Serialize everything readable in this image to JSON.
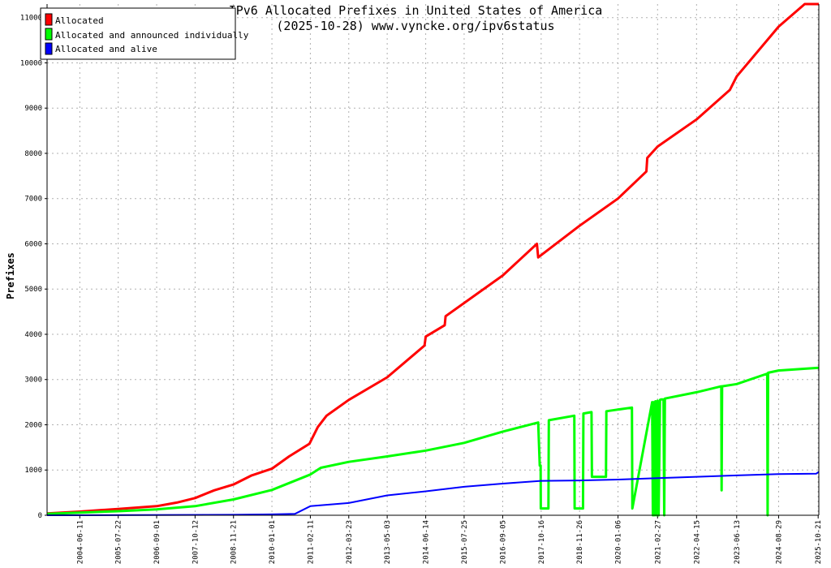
{
  "chart_data": {
    "type": "line",
    "title": "IPv6 Allocated Prefixes in United States of America",
    "subtitle": "(2025-10-28) www.vyncke.org/ipv6status",
    "xlabel": "",
    "ylabel": "Prefixes",
    "ylim": [
      0,
      11300
    ],
    "yticks": [
      0,
      1000,
      2000,
      3000,
      4000,
      5000,
      6000,
      7000,
      8000,
      9000,
      10000,
      11000
    ],
    "xlim": [
      "2003-07-01",
      "2025-10-28"
    ],
    "xticks": [
      "2004-06-11",
      "2005-07-22",
      "2006-09-01",
      "2007-10-12",
      "2008-11-21",
      "2010-01-01",
      "2011-02-11",
      "2012-03-23",
      "2013-05-03",
      "2014-06-14",
      "2015-07-25",
      "2016-09-05",
      "2017-10-16",
      "2018-11-26",
      "2020-01-06",
      "2021-02-27",
      "2022-04-15",
      "2023-06-13",
      "2024-08-29",
      "2025-10-21"
    ],
    "grid": true,
    "legend_position": "top-left",
    "series": [
      {
        "name": "Allocated",
        "color": "#ff0000",
        "x": [
          "2003-07-01",
          "2004-06-11",
          "2005-07-22",
          "2006-09-01",
          "2007-04-01",
          "2007-10-12",
          "2008-05-01",
          "2008-11-21",
          "2009-06-01",
          "2010-01-01",
          "2010-07-01",
          "2011-02-01",
          "2011-05-01",
          "2011-08-01",
          "2012-03-23",
          "2013-05-03",
          "2014-06-01",
          "2014-06-14",
          "2015-01-01",
          "2015-01-10",
          "2016-09-05",
          "2017-09-01",
          "2017-09-15",
          "2018-11-26",
          "2020-01-06",
          "2020-11-01",
          "2020-11-10",
          "2021-02-27",
          "2022-04-15",
          "2023-04-01",
          "2023-06-13",
          "2024-08-29",
          "2025-06-01",
          "2025-10-28"
        ],
        "values": [
          40,
          80,
          140,
          200,
          280,
          380,
          550,
          680,
          880,
          1030,
          1300,
          1580,
          1950,
          2200,
          2550,
          3050,
          3750,
          3950,
          4200,
          4400,
          5300,
          6000,
          5700,
          6400,
          7000,
          7600,
          7900,
          8150,
          8750,
          9400,
          9700,
          10800,
          11300,
          11300
        ]
      },
      {
        "name": "Allocated and announced individually",
        "color": "#00ff00",
        "x": [
          "2003-07-01",
          "2004-06-11",
          "2005-07-22",
          "2006-09-01",
          "2007-10-12",
          "2008-11-21",
          "2010-01-01",
          "2011-02-11",
          "2011-06-01",
          "2012-03-23",
          "2013-05-03",
          "2014-06-14",
          "2015-07-25",
          "2016-09-05",
          "2017-09-15",
          "2017-10-01",
          "2017-10-10",
          "2017-10-12",
          "2018-01-01",
          "2018-01-05",
          "2018-10-01",
          "2018-10-05",
          "2019-01-01",
          "2019-01-05",
          "2019-04-01",
          "2019-04-05",
          "2019-09-01",
          "2019-09-05",
          "2020-06-01",
          "2020-06-05",
          "2021-01-01",
          "2021-01-08",
          "2021-01-15",
          "2021-01-22",
          "2021-02-05",
          "2021-02-12",
          "2021-02-27",
          "2021-03-10",
          "2021-03-25",
          "2021-04-05",
          "2021-05-01",
          "2021-05-08",
          "2021-05-15",
          "2022-04-15",
          "2023-01-01",
          "2023-01-05",
          "2023-01-10",
          "2023-06-13",
          "2024-05-01",
          "2024-05-05",
          "2024-05-10",
          "2024-08-29",
          "2025-10-28"
        ],
        "values": [
          30,
          60,
          90,
          130,
          200,
          350,
          560,
          900,
          1050,
          1180,
          1300,
          1430,
          1600,
          1850,
          2050,
          1100,
          1100,
          150,
          150,
          2100,
          2200,
          150,
          150,
          2250,
          2280,
          850,
          850,
          2300,
          2380,
          150,
          2500,
          0,
          2500,
          0,
          2520,
          0,
          2530,
          0,
          2550,
          2560,
          2560,
          0,
          2580,
          2720,
          2850,
          550,
          2850,
          2900,
          3130,
          0,
          3150,
          3200,
          3260
        ]
      },
      {
        "name": "Allocated and alive",
        "color": "#0000ff",
        "x": [
          "2003-07-01",
          "2008-11-21",
          "2010-01-01",
          "2010-09-01",
          "2011-02-11",
          "2012-03-23",
          "2013-05-03",
          "2014-06-14",
          "2015-07-25",
          "2016-09-05",
          "2017-10-16",
          "2018-11-26",
          "2020-01-06",
          "2021-02-27",
          "2022-04-15",
          "2023-06-13",
          "2024-08-29",
          "2025-10-01",
          "2025-10-28"
        ],
        "values": [
          0,
          10,
          20,
          30,
          200,
          270,
          440,
          530,
          630,
          700,
          760,
          770,
          790,
          820,
          850,
          880,
          910,
          920,
          960
        ]
      }
    ]
  }
}
